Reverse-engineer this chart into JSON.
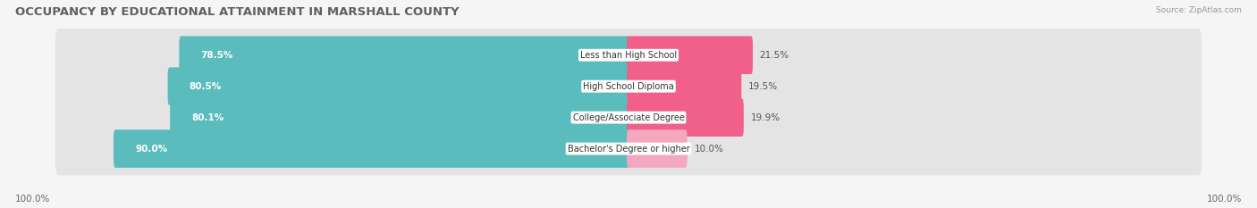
{
  "title": "OCCUPANCY BY EDUCATIONAL ATTAINMENT IN MARSHALL COUNTY",
  "source": "Source: ZipAtlas.com",
  "categories": [
    "Less than High School",
    "High School Diploma",
    "College/Associate Degree",
    "Bachelor's Degree or higher"
  ],
  "owner_values": [
    78.5,
    80.5,
    80.1,
    90.0
  ],
  "renter_values": [
    21.5,
    19.5,
    19.9,
    10.0
  ],
  "owner_color": "#5bbcbe",
  "renter_colors": [
    "#f0608a",
    "#f0608a",
    "#f0608a",
    "#f4a8c0"
  ],
  "bg_color": "#f5f5f5",
  "row_bg_color": "#e4e4e4",
  "title_fontsize": 9.5,
  "label_fontsize": 7.5,
  "cat_fontsize": 7.0,
  "axis_label_fontsize": 7.5,
  "bar_height": 0.62,
  "left_axis_label": "100.0%",
  "right_axis_label": "100.0%",
  "total_width": 100
}
